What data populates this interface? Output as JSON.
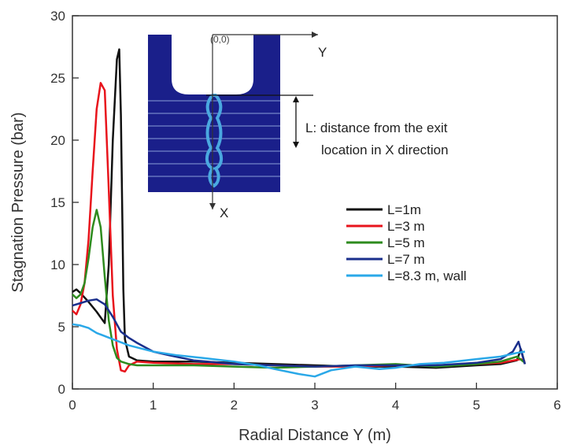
{
  "chart_data": {
    "type": "line",
    "xlabel": "Radial Distance Y (m)",
    "ylabel": "Stagnation Pressure  (bar)",
    "xlim": [
      0,
      6
    ],
    "ylim": [
      0,
      30
    ],
    "xticks": [
      0,
      1,
      2,
      3,
      4,
      5,
      6
    ],
    "yticks": [
      0,
      5,
      10,
      15,
      20,
      25,
      30
    ],
    "grid": false,
    "legend_position": "center-right",
    "series": [
      {
        "name": "L=1m",
        "color": "#111111",
        "x": [
          0,
          0.05,
          0.1,
          0.2,
          0.3,
          0.4,
          0.45,
          0.5,
          0.55,
          0.58,
          0.6,
          0.63,
          0.65,
          0.7,
          0.8,
          1.0,
          1.5,
          2.0,
          2.5,
          3.0,
          3.5,
          4.0,
          4.5,
          5.0,
          5.3,
          5.5,
          5.55,
          5.6
        ],
        "y": [
          7.8,
          8.0,
          7.7,
          7.0,
          6.2,
          5.3,
          10.0,
          20.0,
          26.5,
          27.3,
          22.0,
          8.0,
          4.0,
          2.6,
          2.3,
          2.2,
          2.2,
          2.1,
          2.0,
          1.9,
          1.8,
          1.8,
          1.7,
          1.9,
          2.0,
          2.3,
          3.2,
          2.0
        ]
      },
      {
        "name": "L=3 m",
        "color": "#e8141c",
        "x": [
          0,
          0.05,
          0.1,
          0.15,
          0.2,
          0.25,
          0.3,
          0.35,
          0.4,
          0.45,
          0.5,
          0.55,
          0.6,
          0.65,
          0.7,
          0.8,
          1.0,
          1.5,
          2.0,
          2.5,
          3.0,
          3.5,
          4.0,
          4.5,
          5.0,
          5.3,
          5.55,
          5.6
        ],
        "y": [
          6.3,
          6.0,
          6.8,
          8.5,
          12.0,
          17.5,
          22.5,
          24.6,
          24.0,
          16.0,
          7.5,
          3.2,
          1.5,
          1.4,
          1.9,
          2.2,
          2.1,
          2.0,
          2.0,
          1.9,
          1.8,
          1.8,
          1.9,
          1.9,
          2.0,
          2.1,
          2.4,
          2.2
        ]
      },
      {
        "name": "L=5 m",
        "color": "#2e8b1e",
        "x": [
          0,
          0.05,
          0.1,
          0.15,
          0.2,
          0.25,
          0.3,
          0.35,
          0.4,
          0.45,
          0.5,
          0.55,
          0.6,
          0.7,
          0.8,
          1.0,
          1.5,
          2.0,
          2.5,
          3.0,
          3.5,
          4.0,
          4.5,
          5.0,
          5.3,
          5.5,
          5.6
        ],
        "y": [
          7.6,
          7.3,
          7.6,
          8.5,
          10.5,
          13.0,
          14.4,
          13.0,
          9.0,
          5.5,
          3.5,
          2.5,
          2.2,
          2.0,
          1.9,
          1.9,
          1.9,
          1.8,
          1.7,
          1.8,
          1.9,
          2.0,
          1.8,
          2.0,
          2.2,
          2.6,
          2.1
        ]
      },
      {
        "name": "L=7 m",
        "color": "#1a2f8c",
        "x": [
          0,
          0.1,
          0.2,
          0.3,
          0.4,
          0.5,
          0.6,
          0.7,
          0.8,
          1.0,
          1.2,
          1.5,
          2.0,
          2.5,
          3.0,
          3.5,
          4.0,
          4.5,
          5.0,
          5.3,
          5.45,
          5.52,
          5.6
        ],
        "y": [
          6.7,
          6.9,
          7.1,
          7.2,
          6.8,
          5.8,
          4.6,
          4.1,
          3.7,
          3.0,
          2.7,
          2.3,
          2.0,
          1.9,
          1.8,
          1.9,
          1.9,
          1.9,
          2.1,
          2.4,
          3.0,
          3.8,
          2.0
        ]
      },
      {
        "name": "L=8.3 m, wall",
        "color": "#2aa8e8",
        "x": [
          0,
          0.1,
          0.2,
          0.3,
          0.5,
          0.7,
          1.0,
          1.3,
          1.6,
          2.0,
          2.3,
          2.5,
          2.8,
          3.0,
          3.2,
          3.5,
          3.8,
          4.0,
          4.3,
          4.6,
          5.0,
          5.3,
          5.5,
          5.6
        ],
        "y": [
          5.2,
          5.1,
          4.9,
          4.5,
          4.0,
          3.5,
          3.0,
          2.7,
          2.5,
          2.2,
          1.9,
          1.6,
          1.2,
          1.0,
          1.5,
          1.8,
          1.6,
          1.7,
          2.0,
          2.1,
          2.4,
          2.6,
          2.9,
          3.0
        ]
      }
    ],
    "inset": {
      "origin_label": "(0,0)",
      "y_axis_label": "Y",
      "x_axis_label": "X",
      "annotation_line1": "L: distance from the exit",
      "annotation_line2": "location in X direction"
    }
  }
}
